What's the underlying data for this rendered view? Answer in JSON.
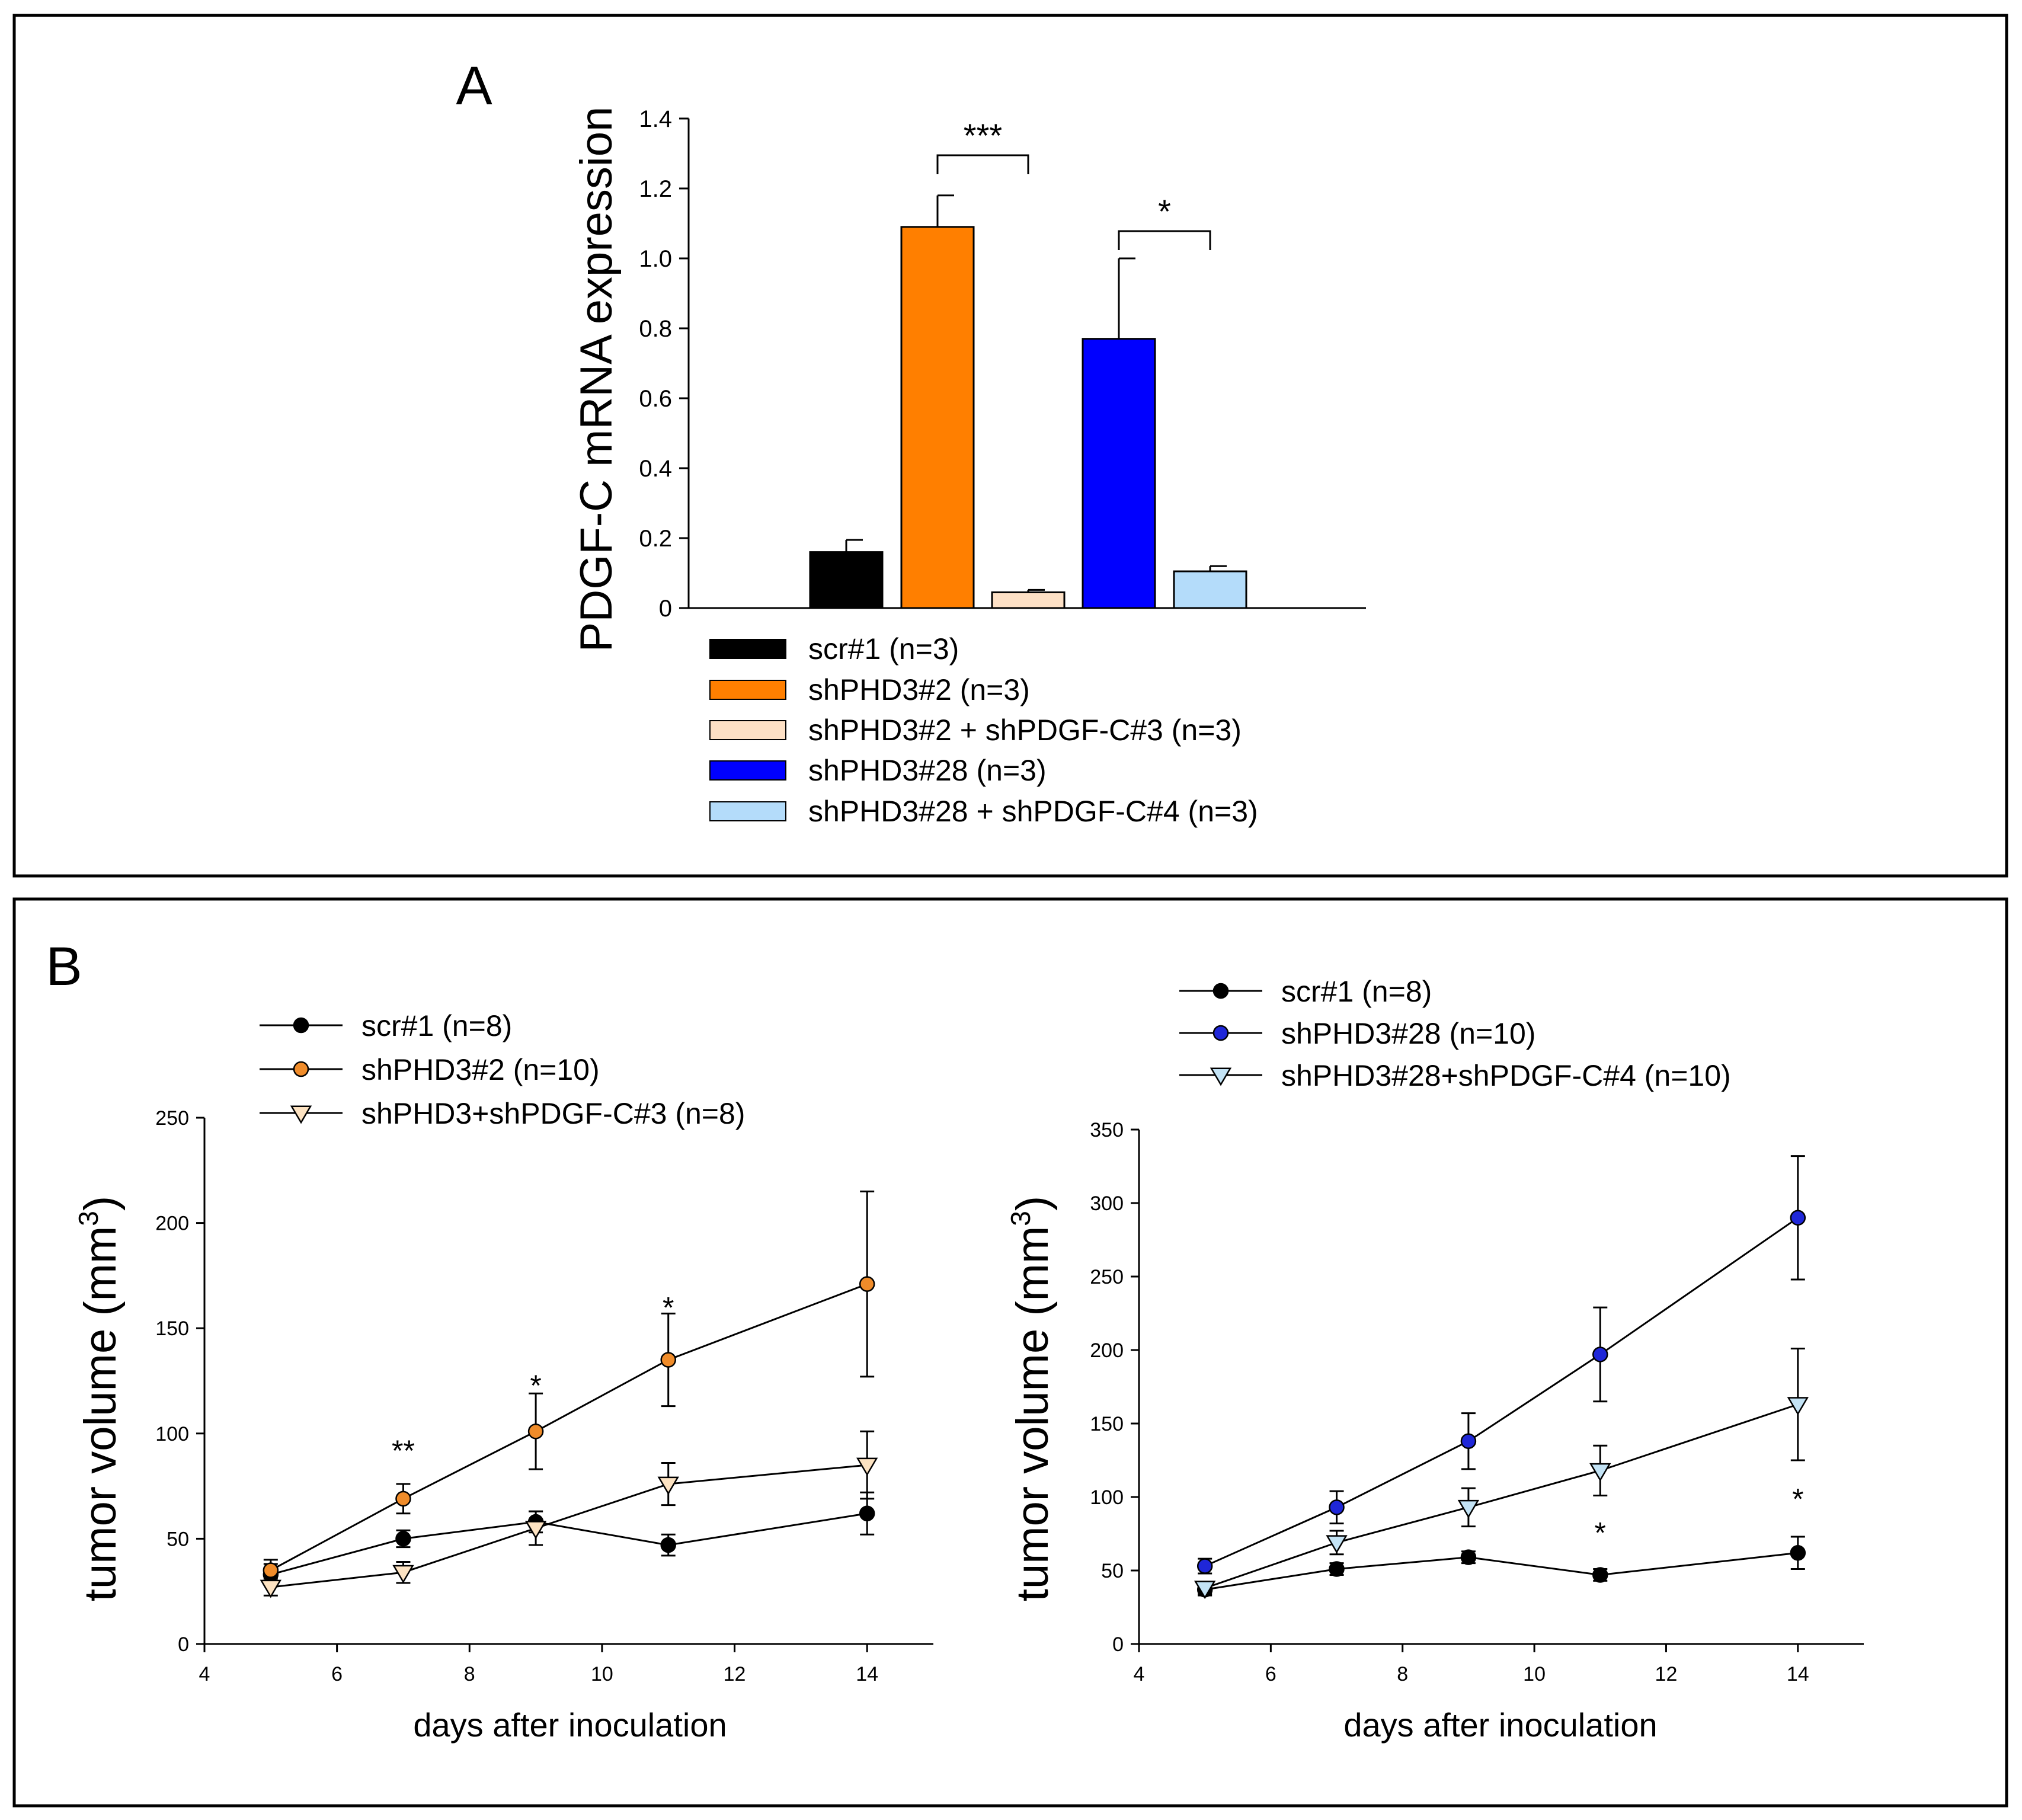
{
  "panel_a": {
    "label": "A",
    "ylabel": "PDGF-C mRNA expression",
    "yticks": [
      "0",
      "0.2",
      "0.4",
      "0.6",
      "0.8",
      "1.0",
      "1.2",
      "1.4"
    ],
    "significance": [
      "***",
      "*"
    ]
  },
  "panel_b": {
    "label": "B",
    "left": {
      "xlabel": "days after inoculation",
      "ylabel": "tumor volume (mm",
      "ylabel_sup": "3",
      "ylabel_close": ")",
      "xticks": [
        "4",
        "6",
        "8",
        "10",
        "12",
        "14"
      ],
      "yticks": [
        "0",
        "50",
        "100",
        "150",
        "200",
        "250"
      ],
      "annotations": [
        "**",
        "*",
        "*"
      ]
    },
    "right": {
      "xlabel": "days after inoculation",
      "ylabel": "tumor volume (mm",
      "ylabel_sup": "3",
      "ylabel_close": ")",
      "xticks": [
        "4",
        "6",
        "8",
        "10",
        "12",
        "14"
      ],
      "yticks": [
        "0",
        "50",
        "100",
        "150",
        "200",
        "250",
        "300",
        "350"
      ],
      "annotations": [
        "*",
        "*"
      ]
    }
  },
  "chart_data": [
    {
      "type": "bar",
      "panel": "A",
      "title": "",
      "xlabel": "",
      "ylabel": "PDGF-C mRNA expression",
      "ylim": [
        0,
        1.4
      ],
      "series": [
        {
          "name": "scr#1 (n=3)",
          "value": 0.16,
          "error": 0.035,
          "color": "#000000"
        },
        {
          "name": "shPHD3#2 (n=3)",
          "value": 1.09,
          "error": 0.09,
          "color": "#ff7f00"
        },
        {
          "name": "shPHD3#2 + shPDGF-C#3 (n=3)",
          "value": 0.045,
          "error": 0.007,
          "color": "#fde0c5"
        },
        {
          "name": "shPHD3#28 (n=3)",
          "value": 0.77,
          "error": 0.23,
          "color": "#0000ff"
        },
        {
          "name": "shPHD3#28 + shPDGF-C#4 (n=3)",
          "value": 0.105,
          "error": 0.015,
          "color": "#b4dcfa"
        }
      ],
      "significance": [
        {
          "from": 1,
          "to": 2,
          "label": "***"
        },
        {
          "from": 3,
          "to": 4,
          "label": "*"
        }
      ]
    },
    {
      "type": "line",
      "panel": "B-left",
      "xlabel": "days after inoculation",
      "ylabel": "tumor volume (mm3)",
      "xlim": [
        4,
        15
      ],
      "ylim": [
        0,
        250
      ],
      "x": [
        5,
        7,
        9,
        11,
        14
      ],
      "series": [
        {
          "name": "scr#1 (n=8)",
          "marker": "circle",
          "fill": "#000000",
          "values": [
            33,
            50,
            58,
            47,
            62
          ],
          "errors": [
            5,
            4,
            5,
            5,
            10
          ]
        },
        {
          "name": "shPHD3#2 (n=10)",
          "marker": "circle",
          "fill": "#f08c2a",
          "values": [
            35,
            69,
            101,
            135,
            171
          ],
          "errors": [
            5,
            7,
            18,
            22,
            44
          ]
        },
        {
          "name": "shPHD3+shPDGF-C#3 (n=8)",
          "marker": "triangle-down",
          "fill": "#fde3c2",
          "values": [
            27,
            34,
            55,
            76,
            85
          ],
          "errors": [
            4,
            5,
            8,
            10,
            16
          ]
        }
      ],
      "annotations": [
        {
          "x": 7,
          "y": 92,
          "text": "**"
        },
        {
          "x": 9,
          "y": 123,
          "text": "*"
        },
        {
          "x": 11,
          "y": 160,
          "text": "*"
        }
      ]
    },
    {
      "type": "line",
      "panel": "B-right",
      "xlabel": "days after inoculation",
      "ylabel": "tumor volume (mm3)",
      "xlim": [
        4,
        15
      ],
      "ylim": [
        0,
        350
      ],
      "x": [
        5,
        7,
        9,
        11,
        14
      ],
      "series": [
        {
          "name": "scr#1 (n=8)",
          "marker": "circle",
          "fill": "#000000",
          "values": [
            37,
            51,
            59,
            47,
            62
          ],
          "errors": [
            4,
            4,
            4,
            4,
            11
          ]
        },
        {
          "name": "shPHD3#28 (n=10)",
          "marker": "circle",
          "fill": "#1f27d8",
          "values": [
            53,
            93,
            138,
            197,
            290
          ],
          "errors": [
            5,
            11,
            19,
            32,
            42
          ]
        },
        {
          "name": "shPHD3#28+shPDGF-C#4 (n=10)",
          "marker": "triangle-down",
          "fill": "#c3e3f5",
          "values": [
            38,
            69,
            93,
            118,
            163
          ],
          "errors": [
            4,
            8,
            13,
            17,
            38
          ]
        }
      ],
      "annotations": [
        {
          "x": 11,
          "y": 76,
          "text": "*"
        },
        {
          "x": 14,
          "y": 99,
          "text": "*"
        }
      ]
    }
  ]
}
